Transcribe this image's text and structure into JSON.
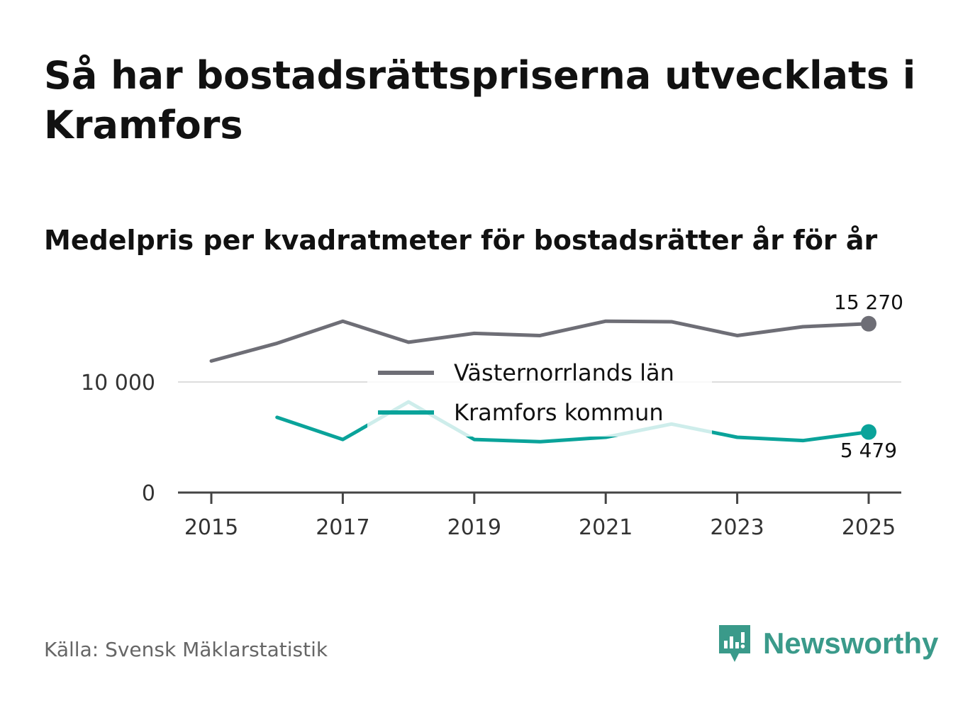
{
  "title": "Så har bostadsrättspriserna utvecklats i Kramfors",
  "subtitle": "Medelpris per kvadratmeter för bostadsrätter år för år",
  "source": "Källa: Svensk Mäklarstatistik",
  "brand": "Newsworthy",
  "chart_data": {
    "type": "line",
    "title": "Så har bostadsrättspriserna utvecklats i Kramfors",
    "subtitle": "Medelpris per kvadratmeter för bostadsrätter år för år",
    "xlabel": "",
    "ylabel": "",
    "xlim": [
      2014.6,
      2025.5
    ],
    "ylim": [
      0,
      15800
    ],
    "grid": true,
    "x_ticks": [
      2015,
      2017,
      2019,
      2021,
      2023,
      2025
    ],
    "x_tick_labels": [
      "2015",
      "2017",
      "2019",
      "2021",
      "2023",
      "2025"
    ],
    "y_ticks": [
      0,
      10000
    ],
    "y_tick_labels": [
      "0",
      "10 000"
    ],
    "legend_position": "center",
    "series": [
      {
        "name": "Västernorrlands län",
        "color": "#6e6e76",
        "x": [
          2015,
          2016,
          2017,
          2018,
          2019,
          2020,
          2021,
          2022,
          2023,
          2024,
          2025
        ],
        "values": [
          11900,
          13500,
          15500,
          13600,
          14400,
          14200,
          15500,
          15450,
          14200,
          15000,
          15270
        ],
        "end_label": "15 270"
      },
      {
        "name": "Kramfors kommun",
        "color": "#0aa39a",
        "x": [
          2016,
          2017,
          2018,
          2019,
          2020,
          2021,
          2022,
          2023,
          2024,
          2025
        ],
        "values": [
          6800,
          4800,
          8200,
          4800,
          4600,
          5000,
          6200,
          5000,
          4700,
          5479
        ],
        "end_label": "5 479"
      }
    ]
  }
}
